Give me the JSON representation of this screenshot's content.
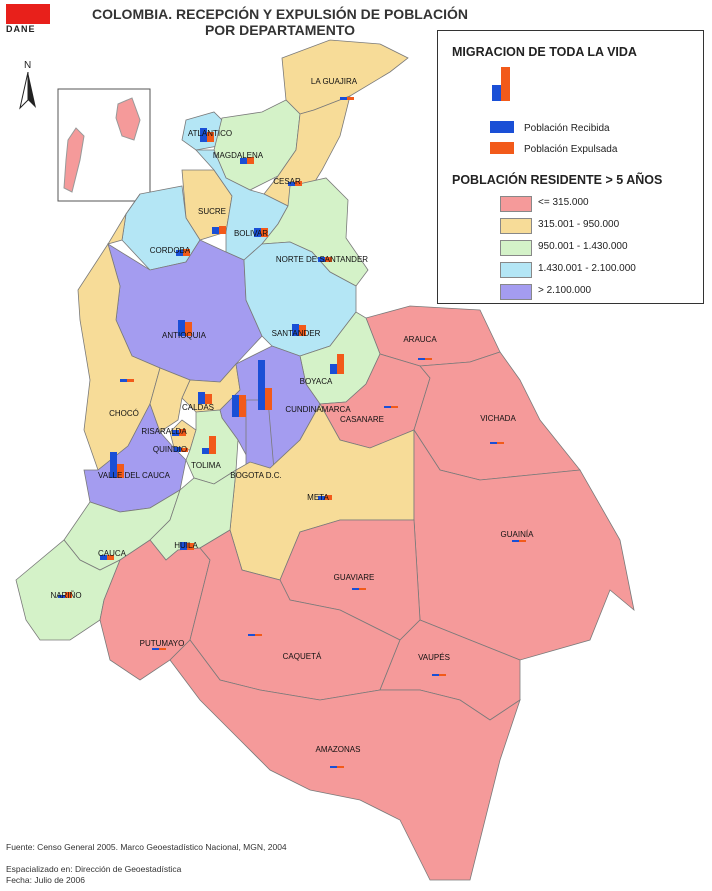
{
  "header": {
    "logo_text": "DANE",
    "title_line1": "COLOMBIA. RECEPCIÓN Y EXPULSIÓN DE POBLACIÓN",
    "title_line2": "POR DEPARTAMENTO"
  },
  "north_label": "N",
  "legend": {
    "migration_title": "MIGRACION DE TODA LA VIDA",
    "series": [
      {
        "label": "Población Recibida",
        "color": "#1a4fd6"
      },
      {
        "label": "Población Expulsada",
        "color": "#f25a1a"
      }
    ],
    "population_title": "POBLACIÓN RESIDENTE > 5 AÑOS",
    "classes": [
      {
        "label": "<= 315.000",
        "color": "#f59a9a"
      },
      {
        "label": "315.001 - 950.000",
        "color": "#f7dc98"
      },
      {
        "label": "950.001 - 1.430.000",
        "color": "#d4f2c8"
      },
      {
        "label": "1.430.001 - 2.100.000",
        "color": "#b4e6f5"
      },
      {
        "label": "> 2.100.000",
        "color": "#a49cf0"
      }
    ]
  },
  "regions": [
    {
      "name": "LA GUAJIRA",
      "cls": 1
    },
    {
      "name": "ATLANTICO",
      "cls": 3
    },
    {
      "name": "MAGDALENA",
      "cls": 2
    },
    {
      "name": "CESAR",
      "cls": 1
    },
    {
      "name": "SUCRE",
      "cls": 1
    },
    {
      "name": "BOLIVAR",
      "cls": 3
    },
    {
      "name": "CORDOBA",
      "cls": 3
    },
    {
      "name": "NORTE DE SANTANDER",
      "cls": 2
    },
    {
      "name": "ANTIOQUIA",
      "cls": 4
    },
    {
      "name": "SANTANDER",
      "cls": 3
    },
    {
      "name": "ARAUCA",
      "cls": 0
    },
    {
      "name": "BOYACA",
      "cls": 2
    },
    {
      "name": "CHOCÓ",
      "cls": 1
    },
    {
      "name": "CALDAS",
      "cls": 1
    },
    {
      "name": "RISARALDA",
      "cls": 1
    },
    {
      "name": "QUINDIO",
      "cls": 1
    },
    {
      "name": "CUNDINAMARCA",
      "cls": 4
    },
    {
      "name": "CASANARE",
      "cls": 0
    },
    {
      "name": "VICHADA",
      "cls": 0
    },
    {
      "name": "TOLIMA",
      "cls": 2
    },
    {
      "name": "BOGOTA D.C.",
      "cls": 4
    },
    {
      "name": "VALLE DEL CAUCA",
      "cls": 4
    },
    {
      "name": "META",
      "cls": 1
    },
    {
      "name": "CAUCA",
      "cls": 2
    },
    {
      "name": "HUILA",
      "cls": 2
    },
    {
      "name": "GUAINÍA",
      "cls": 0
    },
    {
      "name": "NARIÑO",
      "cls": 2
    },
    {
      "name": "GUAVIARE",
      "cls": 0
    },
    {
      "name": "PUTUMAYO",
      "cls": 0
    },
    {
      "name": "CAQUETÁ",
      "cls": 0
    },
    {
      "name": "VAUPÉS",
      "cls": 0
    },
    {
      "name": "AMAZONAS",
      "cls": 0
    }
  ],
  "footer": {
    "source": "Fuente: Censo General 2005. Marco Geoestadístico Nacional, MGN, 2004",
    "spatialized": "Espacializado en: Dirección de Geoestadística",
    "date": "Fecha: Julio de 2006"
  }
}
